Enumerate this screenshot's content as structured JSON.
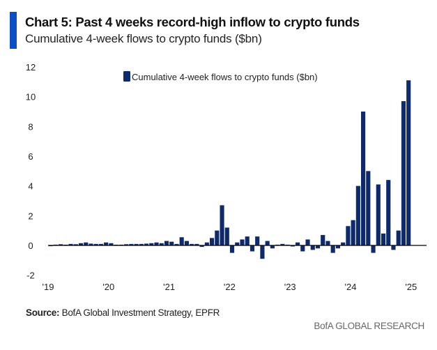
{
  "header": {
    "title": "Chart 5: Past 4 weeks record-high inflow to crypto funds",
    "subtitle": "Cumulative 4-week flows to crypto funds ($bn)"
  },
  "footer": {
    "source_label": "Source:",
    "source_text": "BofA Global Investment Strategy, EPFR",
    "brand": "BofA GLOBAL RESEARCH"
  },
  "colors": {
    "series": "#0f2a6b",
    "accent": "#0a4fc4"
  },
  "chart_data": {
    "type": "bar",
    "title": "",
    "xlabel": "",
    "ylabel": "",
    "ylim": [
      -2,
      12
    ],
    "yticks": [
      "12",
      "10",
      "8",
      "6",
      "4",
      "2",
      "0",
      "-2"
    ],
    "xticks": [
      "'19",
      "'20",
      "'21",
      "'22",
      "'23",
      "'24",
      "'25"
    ],
    "legend": "top-center",
    "grid": false,
    "series": [
      {
        "name": "Cumulative 4-week flows to crypto funds ($bn)",
        "x": [
          "2019-01",
          "2019-02",
          "2019-03",
          "2019-04",
          "2019-05",
          "2019-06",
          "2019-07",
          "2019-08",
          "2019-09",
          "2019-10",
          "2019-11",
          "2019-12",
          "2020-01",
          "2020-02",
          "2020-03",
          "2020-04",
          "2020-05",
          "2020-06",
          "2020-07",
          "2020-08",
          "2020-09",
          "2020-10",
          "2020-11",
          "2020-12",
          "2021-01",
          "2021-02",
          "2021-03",
          "2021-04",
          "2021-05",
          "2021-06",
          "2021-07",
          "2021-08",
          "2021-09",
          "2021-10",
          "2021-11",
          "2021-12",
          "2022-01",
          "2022-02",
          "2022-03",
          "2022-04",
          "2022-05",
          "2022-06",
          "2022-07",
          "2022-08",
          "2022-09",
          "2022-10",
          "2022-11",
          "2022-12",
          "2023-01",
          "2023-02",
          "2023-03",
          "2023-04",
          "2023-05",
          "2023-06",
          "2023-07",
          "2023-08",
          "2023-09",
          "2023-10",
          "2023-11",
          "2023-12",
          "2024-01",
          "2024-02",
          "2024-03",
          "2024-04",
          "2024-05",
          "2024-06",
          "2024-07",
          "2024-08",
          "2024-09",
          "2024-10",
          "2024-11",
          "2024-12"
        ],
        "values": [
          0.02,
          0.05,
          0.08,
          0.05,
          0.1,
          0.08,
          0.15,
          0.2,
          0.12,
          0.1,
          0.1,
          0.2,
          0.15,
          0.05,
          0.05,
          0.08,
          0.1,
          0.1,
          0.1,
          0.12,
          0.15,
          0.2,
          0.15,
          0.3,
          0.25,
          0.1,
          0.55,
          0.3,
          0.1,
          0.1,
          -0.1,
          0.2,
          0.5,
          1.0,
          2.7,
          1.2,
          -0.5,
          0.2,
          0.4,
          0.6,
          -0.4,
          0.6,
          -0.9,
          0.3,
          -0.2,
          0.05,
          0.1,
          0.05,
          -0.05,
          0.2,
          -0.4,
          0.4,
          -0.3,
          -0.2,
          0.7,
          0.3,
          -0.5,
          -0.2,
          0.2,
          1.3,
          1.7,
          4.0,
          9.0,
          5.0,
          -0.5,
          4.1,
          0.8,
          4.4,
          -0.3,
          1.0,
          9.7,
          11.1
        ]
      }
    ]
  }
}
